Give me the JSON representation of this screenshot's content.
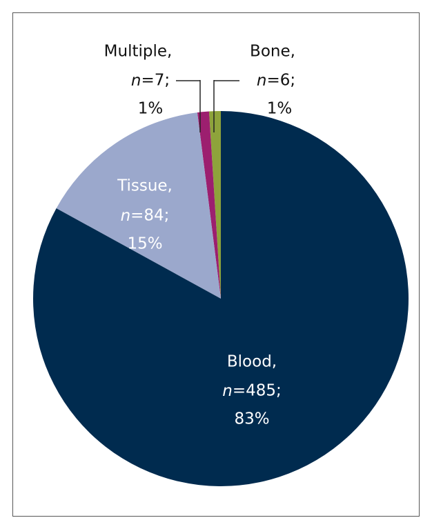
{
  "chart_data": {
    "type": "pie",
    "categories": [
      "Blood,",
      "Tissue,",
      "Multiple,",
      "Bone,"
    ],
    "values": [
      83,
      15,
      1,
      1
    ],
    "value_labels": [
      "83%",
      "15%",
      "1%",
      "1%"
    ],
    "count_labels": [
      "n=485;",
      "n=84;",
      "n=7;",
      "n=6;"
    ],
    "colors": [
      "#002b4f",
      "#9ba8cc",
      "#9c1f6f",
      "#8ea33b"
    ]
  }
}
